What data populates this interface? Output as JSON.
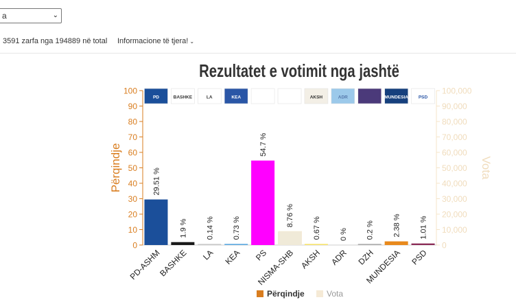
{
  "header": {
    "select_value": "a",
    "info_text": "3591 zarfa nga 194889 në total",
    "menu_label": "Informacione të tjera!"
  },
  "colors": {
    "left_axis": "#d97d1f",
    "right_axis": "#f5e4c9",
    "vota": "#f5ead6"
  },
  "chart_data": {
    "type": "bar",
    "title": "Rezultatet e votimit nga jashtë",
    "categories": [
      "PD-ASHM",
      "BASHKE",
      "LA",
      "KEA",
      "PS",
      "NISMA-SHB",
      "AKSH",
      "ADR",
      "DZH",
      "MUNDESIA",
      "PSD"
    ],
    "series": [
      {
        "name": "Përqindje",
        "values": [
          29.51,
          1.9,
          0.14,
          0.73,
          54.7,
          8.76,
          0.67,
          0,
          0.2,
          2.38,
          1.01
        ],
        "labels": [
          "29.51 %",
          "1.9 %",
          "0.14 %",
          "0.73 %",
          "54.7 %",
          "8.76 %",
          "0.67 %",
          "0 %",
          "0.2 %",
          "2.38 %",
          "1.01 %"
        ],
        "colors": [
          "#1b4f9a",
          "#1a1a1a",
          "#c9c9c9",
          "#5ba8e0",
          "#ff00ff",
          "#f0ead8",
          "#f7e36b",
          "#aaaaaa",
          "#aaaaaa",
          "#e8891c",
          "#8a2a55"
        ]
      }
    ],
    "vota_values": [
      0,
      0,
      0,
      0,
      0,
      9000,
      0,
      0,
      0,
      0,
      0
    ],
    "ylabel": "Përqindje",
    "y2label": "Vota",
    "ylim": [
      0,
      100
    ],
    "y2lim": [
      0,
      100000
    ],
    "yticks": [
      "0",
      "10",
      "20",
      "30",
      "40",
      "50",
      "60",
      "70",
      "80",
      "90",
      "100"
    ],
    "y2ticks": [
      "0",
      "10,000",
      "20,000",
      "30,000",
      "40,000",
      "50,000",
      "60,000",
      "70,000",
      "80,000",
      "90,000",
      "100,000"
    ],
    "party_logos": [
      "PD",
      "BASHKE",
      "LA",
      "KEA",
      "",
      "",
      "AKSH",
      "ADR",
      "",
      "MUNDESIA",
      "PSD"
    ],
    "legend": [
      "Përqindje",
      "Vota"
    ],
    "legend_position": "bottom"
  }
}
